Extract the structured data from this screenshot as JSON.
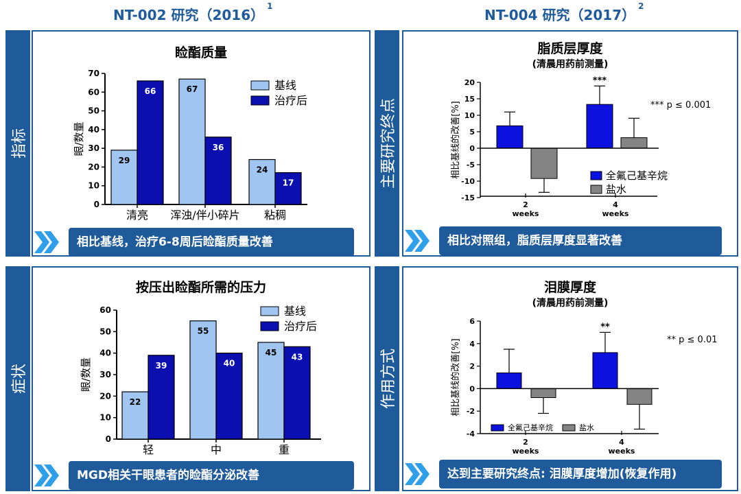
{
  "headers": {
    "left": "NT-002 研究（2016）",
    "left_sup": "1",
    "right": "NT-004 研究（2017）",
    "right_sup": "2"
  },
  "side_labels": {
    "top_left": "指标",
    "bottom_left": "症状",
    "top_right": "主要研究终点",
    "bottom_right": "作用方式"
  },
  "colors": {
    "brand": "#1f5a9a",
    "baseline": "#9fc5f0",
    "treatment": "#0c0fb0",
    "drug": "#0c11e0",
    "saline": "#848484",
    "arrow": "#2e9fe8"
  },
  "panels": {
    "meibum_quality": {
      "ribbon": "相比基线，治疗6-8周后睑酯质量改善"
    },
    "meibum_pressure": {
      "ribbon": "MGD相关干眼患者的睑酯分泌改善"
    },
    "lipid_layer": {
      "subtitle": "(清晨用药前测量)",
      "p_note": "*** p ≤ 0.001",
      "ribbon": "相比对照组，脂质层厚度显著改善"
    },
    "tear_film": {
      "subtitle": "(清晨用药前测量)",
      "p_note": "** p ≤ 0.01",
      "ribbon": "达到主要研究终点: 泪膜厚度增加(恢复作用)"
    }
  },
  "chart_data": [
    {
      "type": "bar",
      "title": "睑酯质量",
      "ylabel": "眼/数量",
      "xlabel": "",
      "categories": [
        "清亮",
        "浑浊/伴小碎片",
        "粘稠"
      ],
      "series": [
        {
          "name": "基线",
          "values": [
            29,
            67,
            24
          ]
        },
        {
          "name": "治疗后",
          "values": [
            66,
            36,
            17
          ]
        }
      ],
      "ylim": [
        0,
        70
      ],
      "yticks": [
        "0",
        "10",
        "20",
        "30",
        "40",
        "50",
        "60",
        "70"
      ],
      "data_labels": true,
      "legend": "top-right"
    },
    {
      "type": "bar",
      "title": "按压出睑酯所需的压力",
      "ylabel": "眼/数量",
      "xlabel": "",
      "categories": [
        "轻",
        "中",
        "重"
      ],
      "series": [
        {
          "name": "基线",
          "values": [
            22,
            55,
            45
          ]
        },
        {
          "name": "治疗后",
          "values": [
            39,
            40,
            43
          ]
        }
      ],
      "ylim": [
        0,
        60
      ],
      "yticks": [
        "0",
        "10",
        "20",
        "30",
        "40",
        "50",
        "60"
      ],
      "data_labels": true,
      "legend": "top-right"
    },
    {
      "type": "bar",
      "title": "脂质层厚度",
      "ylabel": "相比基线的改善[%]",
      "xlabel": "",
      "categories": [
        [
          "2",
          "weeks"
        ],
        [
          "4",
          "weeks"
        ]
      ],
      "series": [
        {
          "name": "全氟己基辛烷",
          "values": [
            6.8,
            13.3
          ],
          "error": [
            4.2,
            5.6
          ]
        },
        {
          "name": "盐水",
          "values": [
            -9.2,
            3.2
          ],
          "error": [
            4.2,
            5.9
          ]
        }
      ],
      "significance": [
        "",
        "***"
      ],
      "ylim": [
        -15,
        20
      ],
      "yticks": [
        "-15",
        "-10",
        "-5",
        "0",
        "5",
        "10",
        "15",
        "20"
      ],
      "legend": "bottom-right"
    },
    {
      "type": "bar",
      "title": "泪膜厚度",
      "ylabel": "相比基线的改善[%]",
      "xlabel": "",
      "categories": [
        [
          "2",
          "weeks"
        ],
        [
          "4",
          "weeks"
        ]
      ],
      "series": [
        {
          "name": "全氟己基辛烷",
          "values": [
            1.4,
            3.2
          ],
          "error": [
            2.1,
            1.8
          ]
        },
        {
          "name": "盐水",
          "values": [
            -0.8,
            -1.4
          ],
          "error": [
            1.4,
            2.2
          ]
        }
      ],
      "significance": [
        "",
        "**"
      ],
      "ylim": [
        -4,
        6
      ],
      "yticks": [
        "-4",
        "-2",
        "0",
        "2",
        "4",
        "6"
      ],
      "legend": "bottom-left"
    }
  ]
}
